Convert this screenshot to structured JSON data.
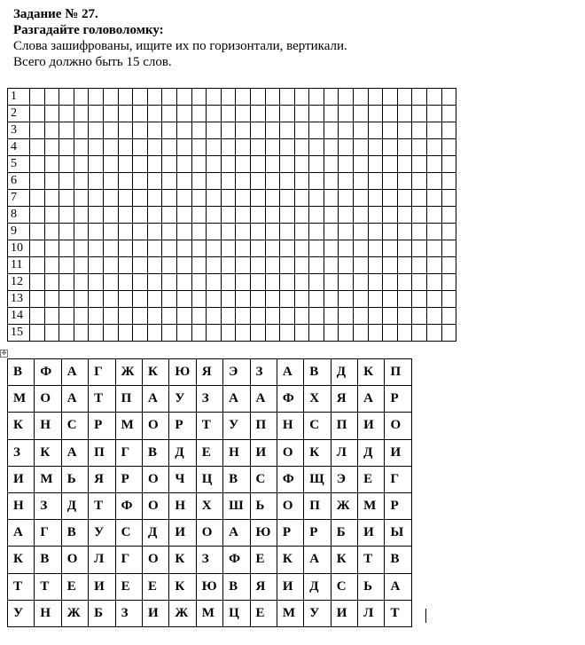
{
  "header": {
    "task": "Задание № 27.",
    "subtitle": "Разгадайте головоломку:",
    "line1": "Слова зашифрованы, ищите их по горизонтали, вертикали.",
    "line2": "Всего должно быть 15 слов."
  },
  "answer_grid": {
    "rows": [
      "1",
      "2",
      "3",
      "4",
      "5",
      "6",
      "7",
      "8",
      "9",
      "10",
      "11",
      "12",
      "13",
      "14",
      "15"
    ],
    "empty_cells_per_row": 29
  },
  "puzzle_grid": [
    [
      "В",
      "Ф",
      "А",
      "Г",
      "Ж",
      "К",
      "Ю",
      "Я",
      "Э",
      "З",
      "А",
      "В",
      "Д",
      "К",
      "П"
    ],
    [
      "М",
      "О",
      "А",
      "Т",
      "П",
      "А",
      "У",
      "З",
      "А",
      "А",
      "Ф",
      "Х",
      "Я",
      "А",
      "Р"
    ],
    [
      "К",
      "Н",
      "С",
      "Р",
      "М",
      "О",
      "Р",
      "Т",
      "У",
      "П",
      "Н",
      "С",
      "П",
      "И",
      "О"
    ],
    [
      "З",
      "К",
      "А",
      "П",
      "Г",
      "В",
      "Д",
      "Е",
      "Н",
      "И",
      "О",
      "К",
      "Л",
      "Д",
      "И"
    ],
    [
      "И",
      "М",
      "Ь",
      "Я",
      "Р",
      "О",
      "Ч",
      "Ц",
      "В",
      "С",
      "Ф",
      "Щ",
      "Э",
      "Е",
      "Г"
    ],
    [
      "Н",
      "З",
      "Д",
      "Т",
      "Ф",
      "О",
      "Н",
      "Х",
      "Ш",
      "Ь",
      "О",
      "П",
      "Ж",
      "М",
      "Р"
    ],
    [
      "А",
      "Г",
      "В",
      "У",
      "С",
      "Д",
      "И",
      "О",
      "А",
      "Ю",
      "Р",
      "Р",
      "Б",
      "И",
      "Ы"
    ],
    [
      "К",
      "В",
      "О",
      "Л",
      "Г",
      "О",
      "К",
      "З",
      "Ф",
      "Е",
      "К",
      "А",
      "К",
      "Т",
      "В"
    ],
    [
      "Т",
      "Т",
      "Е",
      "И",
      "Е",
      "Е",
      "К",
      "Ю",
      "В",
      "Я",
      "И",
      "Д",
      "С",
      "Ь",
      "А"
    ],
    [
      "У",
      "Н",
      "Ж",
      "Б",
      "З",
      "И",
      "Ж",
      "М",
      "Ц",
      "Е",
      "М",
      "У",
      "И",
      "Л",
      "Т"
    ]
  ],
  "icons": {
    "table_handle": "move-handle-icon"
  }
}
